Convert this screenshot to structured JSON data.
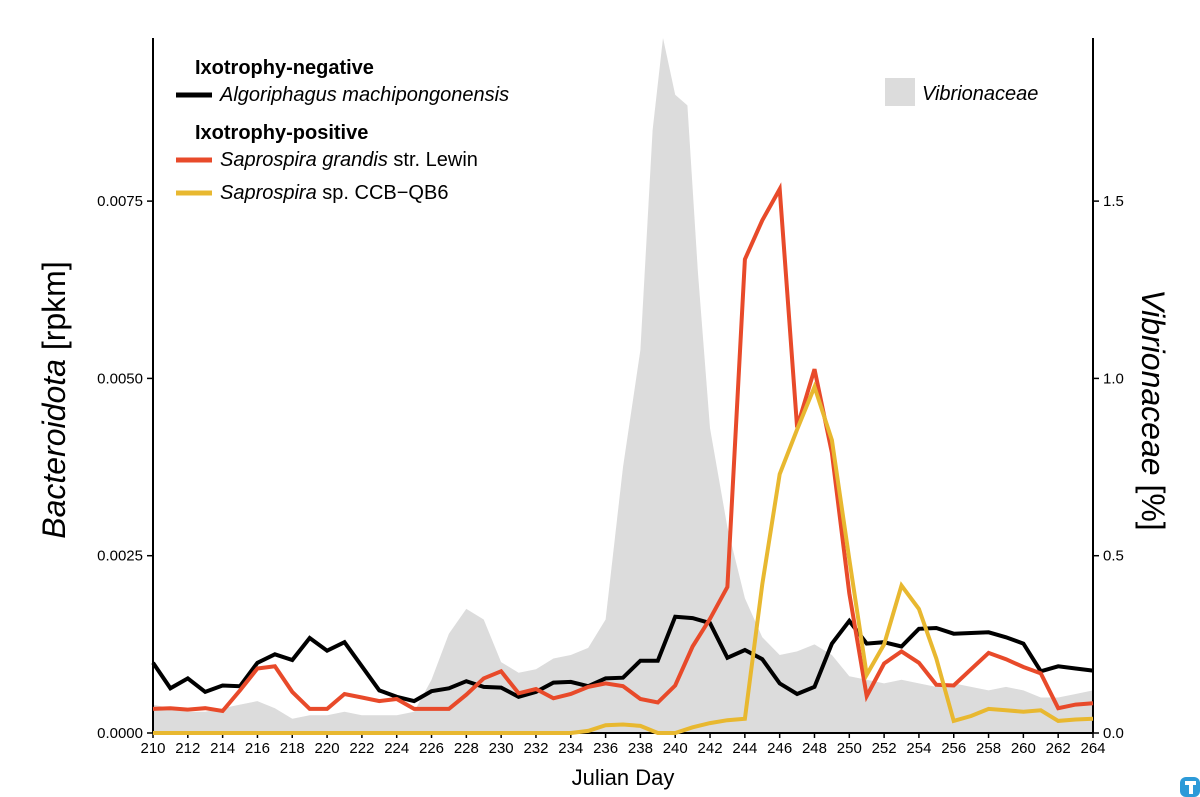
{
  "chart_data": {
    "type": "line",
    "xlabel": "Julian Day",
    "ylabel_left_italic": "Bacteroidota",
    "ylabel_left_unit": " [rpkm]",
    "ylabel_right_italic": "Vibrionaceae",
    "ylabel_right_unit": " [%]",
    "x_range": [
      210,
      264
    ],
    "x_ticks": [
      "210",
      "212",
      "214",
      "216",
      "218",
      "220",
      "222",
      "224",
      "226",
      "228",
      "230",
      "232",
      "234",
      "236",
      "238",
      "240",
      "242",
      "244",
      "246",
      "248",
      "250",
      "252",
      "254",
      "256",
      "258",
      "260",
      "262",
      "264"
    ],
    "ylim_left": [
      0,
      0.0098
    ],
    "y_ticks_left": [
      "0.0000",
      "0.0025",
      "0.0050",
      "0.0075"
    ],
    "ylim_right": [
      0,
      1.96
    ],
    "y_ticks_right": [
      "0.0",
      "0.5",
      "1.0",
      "1.5"
    ],
    "legend": {
      "negative_heading": "Ixotrophy-negative",
      "positive_heading": "Ixotrophy-positive",
      "entries": [
        {
          "key": "algoriphagus",
          "italic": "Algoriphagus machipongonensis",
          "suffix": "",
          "color": "#000000"
        },
        {
          "key": "grandis",
          "italic": "Saprospira grandis",
          "suffix": " str. Lewin",
          "color": "#e84a2a"
        },
        {
          "key": "ccb",
          "italic": "Saprospira",
          "suffix": " sp. CCB−QB6",
          "color": "#e8b830"
        }
      ],
      "area_entry": {
        "italic": "Vibrionaceae",
        "color": "#dcdcdc"
      }
    },
    "area_series": {
      "name": "Vibrionaceae",
      "axis": "right",
      "color": "#dcdcdc",
      "x": [
        210,
        211,
        212,
        213,
        214,
        215,
        216,
        217,
        218,
        219,
        220,
        221,
        222,
        223,
        224,
        225,
        226,
        227,
        228,
        229,
        230,
        231,
        232,
        233,
        234,
        235,
        236,
        237,
        238,
        238.7,
        239.3,
        240,
        240.7,
        241.3,
        242,
        243,
        244,
        245,
        246,
        247,
        248,
        249,
        250,
        251,
        252,
        253,
        254,
        255,
        256,
        257,
        258,
        259,
        260,
        261,
        262,
        263,
        264
      ],
      "values": [
        0.08,
        0.07,
        0.06,
        0.06,
        0.07,
        0.08,
        0.09,
        0.07,
        0.04,
        0.05,
        0.05,
        0.06,
        0.05,
        0.05,
        0.05,
        0.06,
        0.15,
        0.28,
        0.35,
        0.32,
        0.2,
        0.17,
        0.18,
        0.21,
        0.22,
        0.24,
        0.32,
        0.75,
        1.08,
        1.7,
        1.96,
        1.8,
        1.77,
        1.3,
        0.86,
        0.58,
        0.38,
        0.27,
        0.22,
        0.23,
        0.25,
        0.22,
        0.16,
        0.15,
        0.14,
        0.15,
        0.14,
        0.13,
        0.14,
        0.13,
        0.12,
        0.13,
        0.12,
        0.1,
        0.1,
        0.11,
        0.12
      ]
    },
    "series": [
      {
        "name": "Algoriphagus machipongonensis",
        "axis": "left",
        "color": "#000000",
        "x": [
          210,
          211,
          212,
          213,
          214,
          215,
          216,
          217,
          218,
          219,
          220,
          221,
          222,
          223,
          224,
          225,
          226,
          227,
          228,
          229,
          230,
          231,
          232,
          233,
          234,
          235,
          236,
          237,
          238,
          239,
          240,
          241,
          242,
          243,
          244,
          245,
          246,
          247,
          248,
          249,
          250,
          251,
          252,
          253,
          254,
          255,
          256,
          257,
          258,
          259,
          260,
          261,
          262,
          263,
          264
        ],
        "values": [
          0.00099,
          0.00063,
          0.00077,
          0.00058,
          0.00067,
          0.00066,
          0.00099,
          0.00111,
          0.00103,
          0.00134,
          0.00116,
          0.00128,
          0.00094,
          0.0006,
          0.00051,
          0.00045,
          0.00059,
          0.00063,
          0.00073,
          0.00065,
          0.00064,
          0.00051,
          0.00058,
          0.00071,
          0.00072,
          0.00066,
          0.00077,
          0.00078,
          0.00102,
          0.00102,
          0.00164,
          0.00162,
          0.00155,
          0.00106,
          0.00117,
          0.00104,
          0.0007,
          0.00055,
          0.00065,
          0.00126,
          0.00158,
          0.00126,
          0.00128,
          0.00122,
          0.00147,
          0.00148,
          0.0014,
          0.00141,
          0.00142,
          0.00135,
          0.00126,
          0.00087,
          0.00094,
          0.00091,
          0.00088
        ]
      },
      {
        "name": "Saprospira grandis str. Lewin",
        "axis": "left",
        "color": "#e84a2a",
        "x": [
          210,
          211,
          212,
          213,
          214,
          215,
          216,
          217,
          218,
          219,
          220,
          221,
          222,
          223,
          224,
          225,
          226,
          227,
          228,
          229,
          230,
          231,
          232,
          233,
          234,
          235,
          236,
          237,
          238,
          239,
          240,
          241,
          242,
          243,
          244,
          245,
          246,
          247,
          248,
          249,
          250,
          251,
          252,
          253,
          254,
          255,
          256,
          257,
          258,
          259,
          260,
          261,
          262,
          263,
          264
        ],
        "values": [
          0.00034,
          0.00035,
          0.00033,
          0.00035,
          0.00031,
          0.0006,
          0.00091,
          0.00094,
          0.00058,
          0.00034,
          0.00034,
          0.00055,
          0.0005,
          0.00045,
          0.00048,
          0.00034,
          0.00034,
          0.00034,
          0.00054,
          0.00077,
          0.00087,
          0.00056,
          0.00062,
          0.00049,
          0.00055,
          0.00065,
          0.0007,
          0.00066,
          0.00048,
          0.00043,
          0.00067,
          0.00122,
          0.00161,
          0.00206,
          0.00668,
          0.00723,
          0.00767,
          0.00431,
          0.00513,
          0.00395,
          0.00197,
          0.00052,
          0.00098,
          0.00115,
          0.00099,
          0.00068,
          0.00067,
          0.0009,
          0.00113,
          0.00104,
          0.00093,
          0.00084,
          0.00035,
          0.0004,
          0.00042
        ]
      },
      {
        "name": "Saprospira sp. CCB-QB6",
        "axis": "left",
        "color": "#e8b830",
        "x": [
          210,
          212,
          214,
          216,
          218,
          220,
          222,
          224,
          226,
          228,
          230,
          232,
          234,
          235,
          236,
          237,
          238,
          239,
          240,
          241,
          242,
          243,
          244,
          245,
          246,
          247,
          248,
          249,
          250,
          251,
          252,
          253,
          254,
          255,
          256,
          257,
          258,
          259,
          260,
          261,
          262,
          263,
          264
        ],
        "values": [
          0.0,
          0.0,
          0.0,
          0.0,
          0.0,
          0.0,
          0.0,
          0.0,
          0.0,
          0.0,
          0.0,
          0.0,
          0.0,
          3e-05,
          0.00011,
          0.00012,
          0.0001,
          0.0,
          0.0,
          8e-05,
          0.00014,
          0.00018,
          0.0002,
          0.0021,
          0.00365,
          0.00428,
          0.00488,
          0.00413,
          0.00245,
          0.00082,
          0.00125,
          0.00208,
          0.00175,
          0.00105,
          0.00017,
          0.00024,
          0.00034,
          0.00032,
          0.0003,
          0.00032,
          0.00017,
          0.00019,
          0.0002
        ]
      }
    ]
  }
}
